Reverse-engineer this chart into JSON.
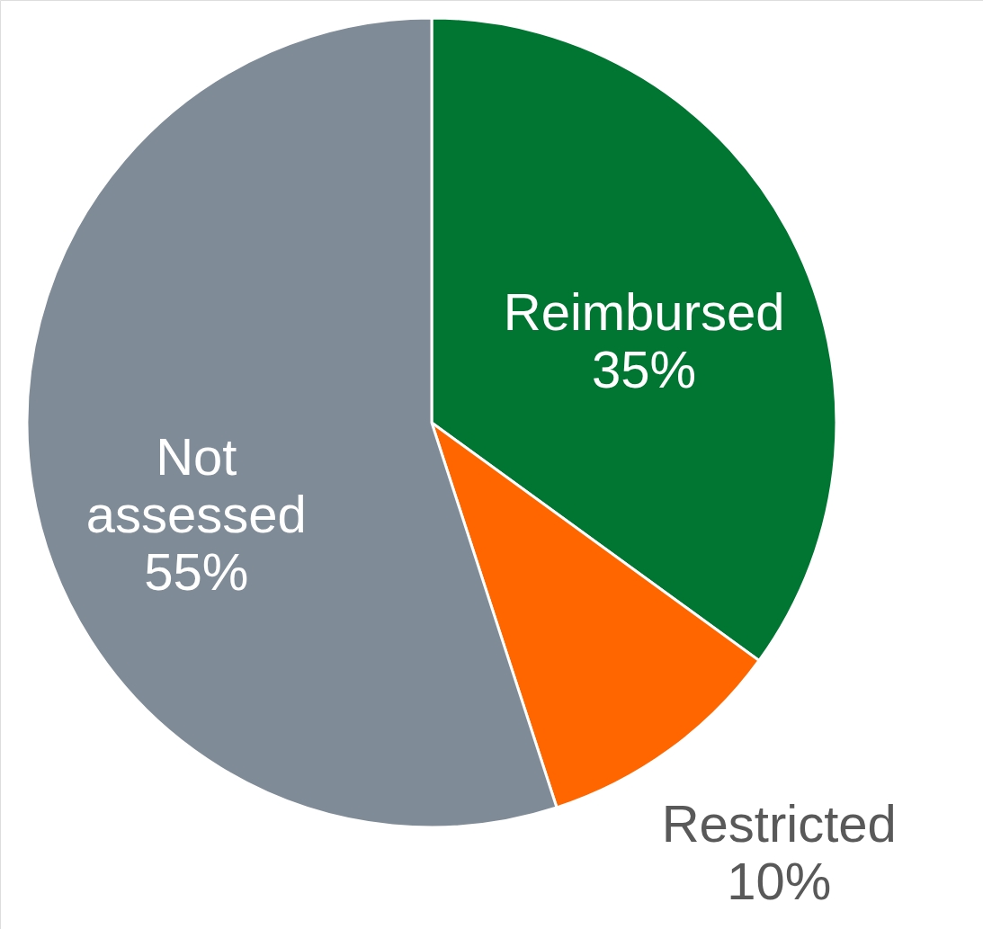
{
  "chart_data": {
    "type": "pie",
    "categories": [
      "Reimbursed",
      "Restricted",
      "Not assessed"
    ],
    "values": [
      35,
      10,
      55
    ],
    "colors": [
      "#007632",
      "#ff6600",
      "#7f8b97"
    ],
    "value_labels": [
      "35%",
      "10%",
      "55%"
    ]
  }
}
